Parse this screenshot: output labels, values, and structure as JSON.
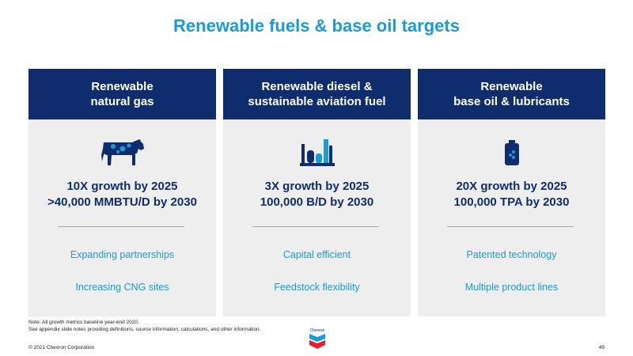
{
  "title": "Renewable fuels & base oil targets",
  "columns": [
    {
      "heading_line1": "Renewable",
      "heading_line2": "natural gas",
      "icon": "cow-icon",
      "target_line1": "10X growth by 2025",
      "target_line2": ">40,000 MMBTU/D by 2030",
      "bullet1": "Expanding partnerships",
      "bullet2": "Increasing CNG sites"
    },
    {
      "heading_line1": "Renewable diesel &",
      "heading_line2": "sustainable aviation fuel",
      "icon": "refinery-icon",
      "target_line1": "3X growth by 2025",
      "target_line2": "100,000 B/D by 2030",
      "bullet1": "Capital efficient",
      "bullet2": "Feedstock flexibility"
    },
    {
      "heading_line1": "Renewable",
      "heading_line2": "base oil & lubricants",
      "icon": "oil-jug-icon",
      "target_line1": "20X growth by 2025",
      "target_line2": "100,000 TPA by 2030",
      "bullet1": "Patented technology",
      "bullet2": "Multiple product lines"
    }
  ],
  "note_line1": "Note: All growth metrics baseline year-end 2020.",
  "note_line2": "See appendix slide notes providing definitions, source information, calculations, and other information.",
  "logo_text": "Chevron",
  "footer": "© 2021 Chevron Corporation",
  "page_number": "49",
  "colors": {
    "title_blue": "#1a9bd7",
    "navy": "#0f2c6d",
    "panel_gray": "#eeeeee"
  }
}
